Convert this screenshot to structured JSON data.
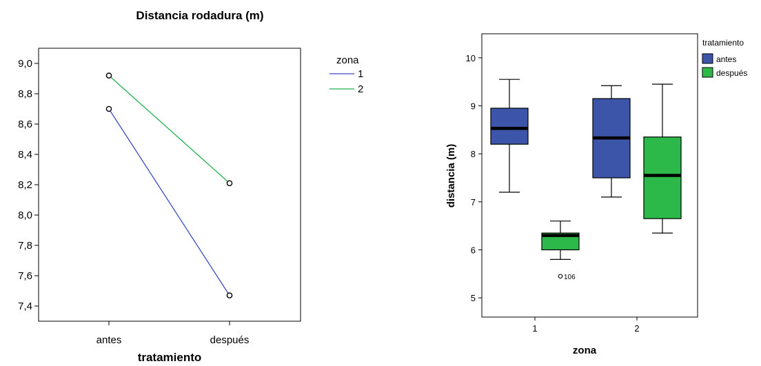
{
  "chart_data": [
    {
      "type": "line",
      "title": "Distancia rodadura (m)",
      "xlabel": "tratamiento",
      "ylabel": "",
      "categories": [
        "antes",
        "después"
      ],
      "ylim": [
        7.3,
        9.1
      ],
      "yticks": [
        "7,4",
        "7,6",
        "7,8",
        "8,0",
        "8,2",
        "8,4",
        "8,6",
        "8,8",
        "9,0"
      ],
      "ytick_values": [
        7.4,
        7.6,
        7.8,
        8.0,
        8.2,
        8.4,
        8.6,
        8.8,
        9.0
      ],
      "legend_title": "zona",
      "legend_position": "right",
      "grid": false,
      "series": [
        {
          "name": "1",
          "values": [
            8.7,
            7.47
          ],
          "color": "#3b4cc0"
        },
        {
          "name": "2",
          "values": [
            8.92,
            8.21
          ],
          "color": "#22b14c"
        }
      ]
    },
    {
      "type": "boxplot",
      "title": "",
      "xlabel": "zona",
      "ylabel": "distancia (m)",
      "categories": [
        "1",
        "2"
      ],
      "ylim": [
        4.6,
        10.5
      ],
      "yticks": [
        "5",
        "6",
        "7",
        "8",
        "9",
        "10"
      ],
      "ytick_values": [
        5,
        6,
        7,
        8,
        9,
        10
      ],
      "legend_title": "tratamiento",
      "legend_position": "top-right",
      "grid": false,
      "series": [
        {
          "name": "antes",
          "color": "#3d55a8",
          "boxes": [
            {
              "category": "1",
              "min": 7.2,
              "q1": 8.2,
              "median": 8.53,
              "q3": 8.95,
              "max": 9.55,
              "outliers": []
            },
            {
              "category": "2",
              "min": 7.1,
              "q1": 7.5,
              "median": 8.33,
              "q3": 9.15,
              "max": 9.42,
              "outliers": []
            }
          ]
        },
        {
          "name": "después",
          "color": "#2db84a",
          "boxes": [
            {
              "category": "1",
              "min": 5.8,
              "q1": 6.0,
              "median": 6.3,
              "q3": 6.35,
              "max": 6.6,
              "outliers": [
                {
                  "value": 5.45,
                  "label": "106"
                }
              ]
            },
            {
              "category": "2",
              "min": 6.35,
              "q1": 6.65,
              "median": 7.55,
              "q3": 8.35,
              "max": 9.45,
              "outliers": []
            }
          ]
        }
      ]
    }
  ]
}
